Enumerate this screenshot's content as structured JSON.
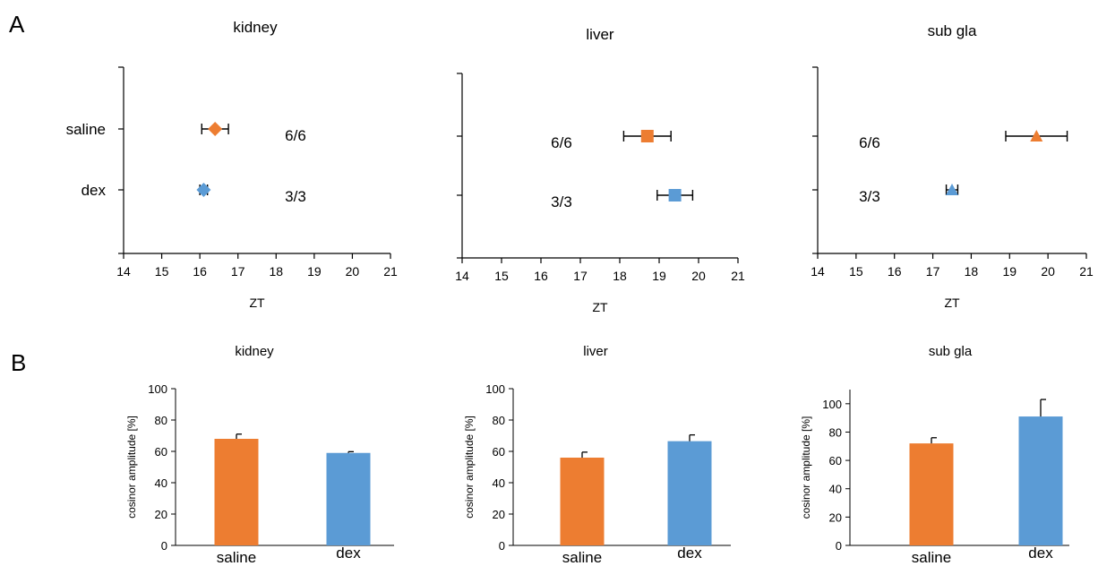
{
  "panels": {
    "A": "A",
    "B": "B"
  },
  "colors": {
    "saline": "#ED7D31",
    "dex": "#5B9BD5",
    "axis": "#000000"
  },
  "chart_data": [
    {
      "panel": "A",
      "type": "scatter",
      "title": "kidney",
      "xlabel": "ZT",
      "xlim": [
        14,
        21
      ],
      "xticks": [
        14,
        15,
        16,
        17,
        18,
        19,
        20,
        21
      ],
      "categories": [
        "saline",
        "dex"
      ],
      "show_category_labels": true,
      "series": [
        {
          "name": "saline",
          "x": 16.4,
          "error": 0.35,
          "marker": "diamond",
          "count": "6/6"
        },
        {
          "name": "dex",
          "x": 16.1,
          "error": 0.1,
          "marker": "diamond",
          "count": "3/3"
        }
      ]
    },
    {
      "panel": "A",
      "type": "scatter",
      "title": "liver",
      "xlabel": "ZT",
      "xlim": [
        14,
        21
      ],
      "xticks": [
        14,
        15,
        16,
        17,
        18,
        19,
        20,
        21
      ],
      "categories": [
        "saline",
        "dex"
      ],
      "show_category_labels": false,
      "series": [
        {
          "name": "saline",
          "x": 18.7,
          "error": 0.6,
          "marker": "square",
          "count": "6/6"
        },
        {
          "name": "dex",
          "x": 19.4,
          "error": 0.45,
          "marker": "square",
          "count": "3/3"
        }
      ]
    },
    {
      "panel": "A",
      "type": "scatter",
      "title": "sub gla",
      "xlabel": "ZT",
      "xlim": [
        14,
        21
      ],
      "xticks": [
        14,
        15,
        16,
        17,
        18,
        19,
        20,
        21
      ],
      "categories": [
        "saline",
        "dex"
      ],
      "show_category_labels": false,
      "series": [
        {
          "name": "saline",
          "x": 19.7,
          "error": 0.8,
          "marker": "triangle",
          "count": "6/6"
        },
        {
          "name": "dex",
          "x": 17.5,
          "error": 0.15,
          "marker": "triangle",
          "count": "3/3"
        }
      ]
    },
    {
      "panel": "B",
      "type": "bar",
      "title": "kidney",
      "ylabel": "cosinor amplitude [%]",
      "ylim": [
        0,
        100
      ],
      "yticks": [
        0,
        20,
        40,
        60,
        80,
        100
      ],
      "categories": [
        "saline",
        "dex"
      ],
      "values": [
        68,
        59
      ],
      "errors": [
        3,
        0.8
      ]
    },
    {
      "panel": "B",
      "type": "bar",
      "title": "liver",
      "ylabel": "cosinor amplitude [%]",
      "ylim": [
        0,
        100
      ],
      "yticks": [
        0,
        20,
        40,
        60,
        80,
        100
      ],
      "categories": [
        "saline",
        "dex"
      ],
      "values": [
        56,
        66.5
      ],
      "errors": [
        3.5,
        4
      ]
    },
    {
      "panel": "B",
      "type": "bar",
      "title": "sub gla",
      "ylabel": "cosinor amplitude [%]",
      "ylim": [
        0,
        110
      ],
      "yticks": [
        0,
        20,
        40,
        60,
        80,
        100
      ],
      "categories": [
        "saline",
        "dex"
      ],
      "values": [
        72,
        91
      ],
      "errors": [
        4,
        12
      ]
    }
  ]
}
